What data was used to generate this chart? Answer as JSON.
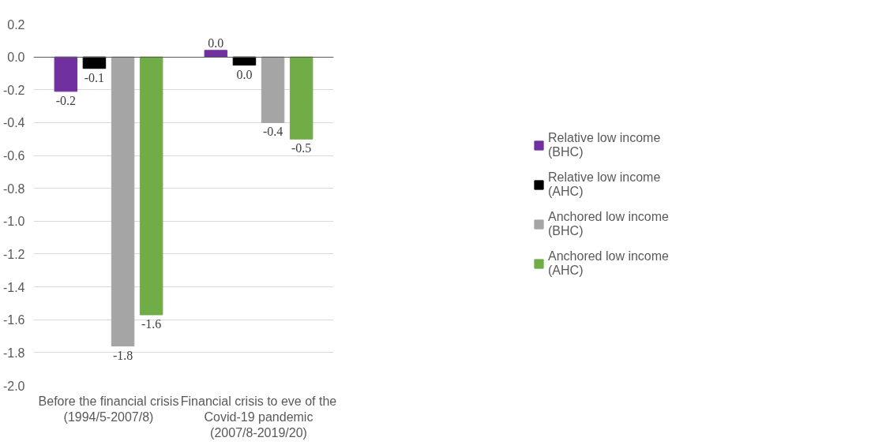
{
  "chart_data": {
    "type": "bar",
    "categories": [
      "Before the financial crisis (1994/5-2007/8)",
      "Financial crisis to eve of the Covid-19 pandemic (2007/8-2019/20)"
    ],
    "series": [
      {
        "name": "Relative low income (BHC)",
        "color": "#7030a0",
        "values": [
          -0.21,
          0.04
        ],
        "value_labels": [
          "-0.2",
          "0.0"
        ]
      },
      {
        "name": "Relative low income (AHC)",
        "color": "#000000",
        "values": [
          -0.07,
          -0.05
        ],
        "value_labels": [
          "-0.1",
          "0.0"
        ]
      },
      {
        "name": "Anchored low income (BHC)",
        "color": "#a5a5a5",
        "values": [
          -1.76,
          -0.4
        ],
        "value_labels": [
          "-1.8",
          "-0.4"
        ]
      },
      {
        "name": "Anchored low income (AHC)",
        "color": "#70ad47",
        "values": [
          -1.57,
          -0.5
        ],
        "value_labels": [
          "-1.6",
          "-0.5"
        ]
      }
    ],
    "ylim": [
      -2.0,
      0.2
    ],
    "yticks": [
      {
        "value": 0.2,
        "label": "0.2"
      },
      {
        "value": 0,
        "label": "0.0"
      },
      {
        "value": -0.2,
        "label": "-0.2"
      },
      {
        "value": -0.4,
        "label": "-0.4"
      },
      {
        "value": -0.6,
        "label": "-0.6"
      },
      {
        "value": -0.8,
        "label": "-0.8"
      },
      {
        "value": -1.0,
        "label": "-1.0"
      },
      {
        "value": -1.2,
        "label": "-1.2"
      },
      {
        "value": -1.4,
        "label": "-1.4"
      },
      {
        "value": -1.6,
        "label": "-1.6"
      },
      {
        "value": -1.8,
        "label": "-1.8"
      },
      {
        "value": -2.0,
        "label": "-2.0"
      }
    ],
    "grid": "y",
    "legend": "right"
  }
}
